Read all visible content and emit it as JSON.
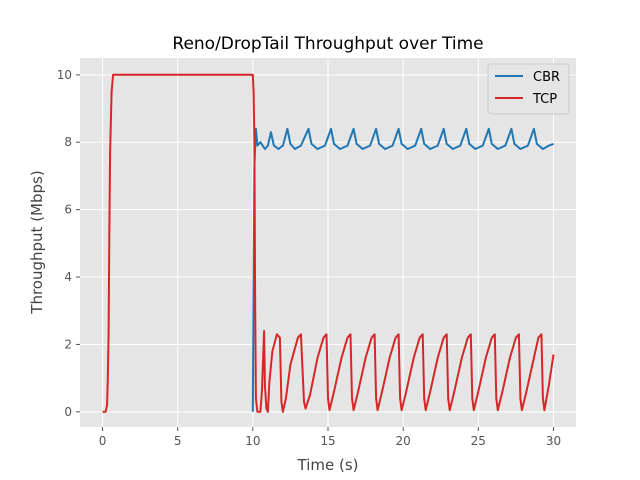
{
  "chart_data": {
    "type": "line",
    "title": "Reno/DropTail Throughput over Time",
    "xlabel": "Time (s)",
    "ylabel": "Throughput (Mbps)",
    "xlim": [
      -1.5,
      31.5
    ],
    "ylim": [
      -0.45,
      10.5
    ],
    "xticks": [
      0,
      5,
      10,
      15,
      20,
      25,
      30
    ],
    "yticks": [
      0,
      2,
      4,
      6,
      8,
      10
    ],
    "grid": true,
    "legend_position": "top-right",
    "series": [
      {
        "name": "CBR",
        "color": "#1f77b4",
        "points": [
          [
            10.0,
            0.0
          ],
          [
            10.1,
            7.3
          ],
          [
            10.2,
            8.4
          ],
          [
            10.3,
            7.9
          ],
          [
            10.5,
            8.0
          ],
          [
            10.8,
            7.8
          ],
          [
            11.0,
            7.9
          ],
          [
            11.2,
            8.3
          ],
          [
            11.4,
            7.9
          ],
          [
            11.7,
            7.8
          ],
          [
            12.0,
            7.9
          ],
          [
            12.3,
            8.4
          ],
          [
            12.5,
            7.95
          ],
          [
            12.8,
            7.8
          ],
          [
            13.2,
            7.9
          ],
          [
            13.7,
            8.4
          ],
          [
            13.9,
            7.95
          ],
          [
            14.3,
            7.8
          ],
          [
            14.8,
            7.9
          ],
          [
            15.2,
            8.4
          ],
          [
            15.4,
            7.95
          ],
          [
            15.8,
            7.8
          ],
          [
            16.3,
            7.9
          ],
          [
            16.7,
            8.4
          ],
          [
            16.9,
            7.95
          ],
          [
            17.3,
            7.8
          ],
          [
            17.8,
            7.9
          ],
          [
            18.2,
            8.4
          ],
          [
            18.4,
            7.95
          ],
          [
            18.8,
            7.8
          ],
          [
            19.3,
            7.9
          ],
          [
            19.7,
            8.4
          ],
          [
            19.9,
            7.95
          ],
          [
            20.3,
            7.8
          ],
          [
            20.8,
            7.9
          ],
          [
            21.2,
            8.4
          ],
          [
            21.4,
            7.95
          ],
          [
            21.8,
            7.8
          ],
          [
            22.3,
            7.9
          ],
          [
            22.7,
            8.4
          ],
          [
            22.9,
            7.95
          ],
          [
            23.3,
            7.8
          ],
          [
            23.8,
            7.9
          ],
          [
            24.2,
            8.4
          ],
          [
            24.4,
            7.95
          ],
          [
            24.8,
            7.8
          ],
          [
            25.3,
            7.9
          ],
          [
            25.7,
            8.4
          ],
          [
            25.9,
            7.95
          ],
          [
            26.3,
            7.8
          ],
          [
            26.8,
            7.9
          ],
          [
            27.2,
            8.4
          ],
          [
            27.4,
            7.95
          ],
          [
            27.8,
            7.8
          ],
          [
            28.3,
            7.9
          ],
          [
            28.7,
            8.4
          ],
          [
            28.9,
            7.95
          ],
          [
            29.3,
            7.8
          ],
          [
            29.7,
            7.9
          ],
          [
            30.0,
            7.95
          ]
        ]
      },
      {
        "name": "TCP",
        "color": "#d62728",
        "points": [
          [
            0.0,
            0.0
          ],
          [
            0.2,
            0.0
          ],
          [
            0.3,
            0.2
          ],
          [
            0.35,
            1.0
          ],
          [
            0.4,
            2.3
          ],
          [
            0.45,
            5.2
          ],
          [
            0.5,
            7.7
          ],
          [
            0.6,
            9.5
          ],
          [
            0.7,
            10.0
          ],
          [
            10.0,
            10.0
          ],
          [
            10.05,
            9.5
          ],
          [
            10.1,
            8.0
          ],
          [
            10.15,
            3.5
          ],
          [
            10.2,
            0.4
          ],
          [
            10.3,
            0.0
          ],
          [
            10.5,
            0.0
          ],
          [
            10.6,
            0.6
          ],
          [
            10.75,
            2.4
          ],
          [
            10.8,
            0.8
          ],
          [
            10.9,
            0.1
          ],
          [
            11.0,
            0.0
          ],
          [
            11.1,
            0.9
          ],
          [
            11.3,
            1.8
          ],
          [
            11.6,
            2.3
          ],
          [
            11.8,
            2.2
          ],
          [
            11.9,
            0.3
          ],
          [
            12.0,
            0.0
          ],
          [
            12.2,
            0.4
          ],
          [
            12.5,
            1.4
          ],
          [
            13.0,
            2.2
          ],
          [
            13.2,
            2.3
          ],
          [
            13.4,
            0.3
          ],
          [
            13.5,
            0.1
          ],
          [
            13.8,
            0.5
          ],
          [
            14.3,
            1.6
          ],
          [
            14.7,
            2.2
          ],
          [
            14.9,
            2.3
          ],
          [
            15.0,
            0.4
          ],
          [
            15.1,
            0.05
          ],
          [
            15.4,
            0.6
          ],
          [
            15.9,
            1.6
          ],
          [
            16.3,
            2.2
          ],
          [
            16.5,
            2.3
          ],
          [
            16.6,
            0.4
          ],
          [
            16.7,
            0.05
          ],
          [
            17.0,
            0.6
          ],
          [
            17.5,
            1.6
          ],
          [
            17.9,
            2.2
          ],
          [
            18.1,
            2.3
          ],
          [
            18.2,
            0.4
          ],
          [
            18.3,
            0.05
          ],
          [
            18.6,
            0.6
          ],
          [
            19.1,
            1.6
          ],
          [
            19.5,
            2.2
          ],
          [
            19.7,
            2.3
          ],
          [
            19.8,
            0.4
          ],
          [
            19.9,
            0.05
          ],
          [
            20.2,
            0.6
          ],
          [
            20.7,
            1.6
          ],
          [
            21.1,
            2.2
          ],
          [
            21.3,
            2.3
          ],
          [
            21.4,
            0.4
          ],
          [
            21.5,
            0.05
          ],
          [
            21.8,
            0.6
          ],
          [
            22.3,
            1.6
          ],
          [
            22.7,
            2.2
          ],
          [
            22.9,
            2.3
          ],
          [
            23.0,
            0.4
          ],
          [
            23.1,
            0.05
          ],
          [
            23.4,
            0.6
          ],
          [
            23.9,
            1.6
          ],
          [
            24.3,
            2.2
          ],
          [
            24.5,
            2.3
          ],
          [
            24.6,
            0.4
          ],
          [
            24.7,
            0.05
          ],
          [
            25.0,
            0.6
          ],
          [
            25.5,
            1.6
          ],
          [
            25.9,
            2.2
          ],
          [
            26.1,
            2.3
          ],
          [
            26.2,
            0.4
          ],
          [
            26.3,
            0.05
          ],
          [
            26.6,
            0.6
          ],
          [
            27.1,
            1.6
          ],
          [
            27.5,
            2.2
          ],
          [
            27.7,
            2.3
          ],
          [
            27.8,
            0.4
          ],
          [
            27.9,
            0.05
          ],
          [
            28.2,
            0.6
          ],
          [
            28.7,
            1.6
          ],
          [
            29.0,
            2.2
          ],
          [
            29.2,
            2.3
          ],
          [
            29.3,
            0.4
          ],
          [
            29.4,
            0.05
          ],
          [
            29.7,
            0.8
          ],
          [
            30.0,
            1.7
          ]
        ]
      }
    ]
  }
}
